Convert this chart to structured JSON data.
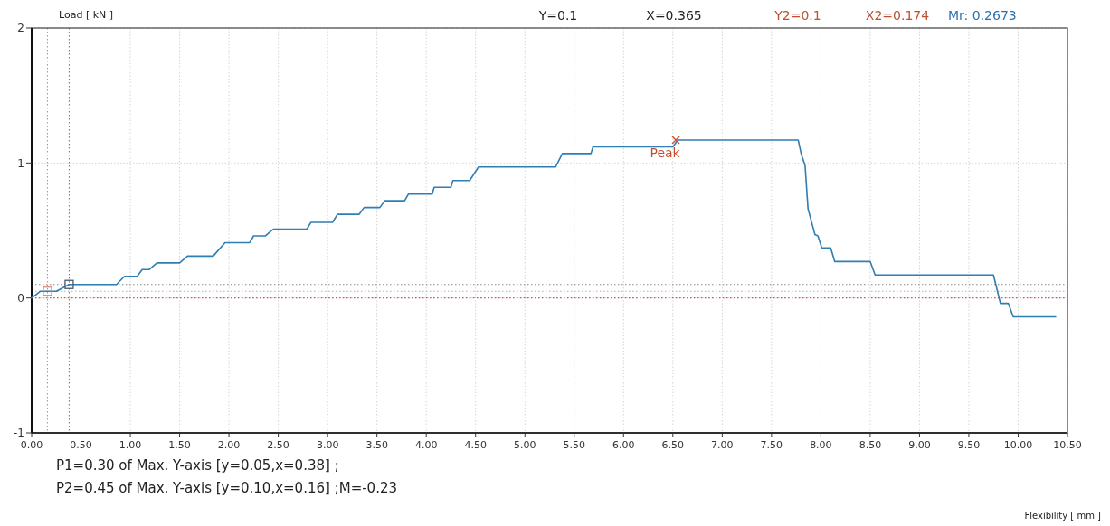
{
  "chart_data": {
    "type": "line",
    "ylabel": "Load [ kN ]",
    "xlim": [
      0,
      10.5
    ],
    "ylim": [
      -1,
      2
    ],
    "xticks": [
      {
        "value": 0,
        "label": "0.00"
      },
      {
        "value": 0.5,
        "label": "0.50"
      },
      {
        "value": 1,
        "label": "1.00"
      },
      {
        "value": 1.5,
        "label": "1.50"
      },
      {
        "value": 2,
        "label": "2.00"
      },
      {
        "value": 2.5,
        "label": "2.50"
      },
      {
        "value": 3,
        "label": "3.00"
      },
      {
        "value": 3.5,
        "label": "3.50"
      },
      {
        "value": 4,
        "label": "4.00"
      },
      {
        "value": 4.5,
        "label": "4.50"
      },
      {
        "value": 5,
        "label": "5.00"
      },
      {
        "value": 5.5,
        "label": "5.50"
      },
      {
        "value": 6,
        "label": "6.00"
      },
      {
        "value": 6.5,
        "label": "6.50"
      },
      {
        "value": 7,
        "label": "7.00"
      },
      {
        "value": 7.5,
        "label": "7.50"
      },
      {
        "value": 8,
        "label": "8.00"
      },
      {
        "value": 8.5,
        "label": "8.50"
      },
      {
        "value": 9,
        "label": "9.00"
      },
      {
        "value": 9.5,
        "label": "9.50"
      },
      {
        "value": 10,
        "label": "10.00"
      },
      {
        "value": 10.5,
        "label": "10.50"
      }
    ],
    "yticks": [
      -1,
      0,
      1,
      2
    ],
    "grid": true,
    "series": [
      {
        "color": "#2e7db3",
        "x": [
          0,
          0.09,
          0.25,
          0.38,
          0.86,
          0.94,
          1.07,
          1.12,
          1.19,
          1.27,
          1.5,
          1.58,
          1.84,
          1.96,
          2.21,
          2.25,
          2.37,
          2.45,
          2.79,
          2.83,
          3.05,
          3.1,
          3.32,
          3.37,
          3.53,
          3.58,
          3.78,
          3.82,
          4.06,
          4.08,
          4.25,
          4.27,
          4.44,
          4.53,
          5.31,
          5.38,
          5.67,
          5.69,
          6.5,
          6.55,
          7.77,
          7.8,
          7.84,
          7.87,
          7.94,
          7.97,
          8.01,
          8.1,
          8.14,
          8.5,
          8.55,
          9.75,
          9.82,
          9.9,
          9.95,
          10.38
        ],
        "values": [
          0,
          0.05,
          0.05,
          0.1,
          0.1,
          0.16,
          0.16,
          0.21,
          0.21,
          0.26,
          0.26,
          0.31,
          0.31,
          0.41,
          0.41,
          0.46,
          0.46,
          0.51,
          0.51,
          0.56,
          0.56,
          0.62,
          0.62,
          0.67,
          0.67,
          0.72,
          0.72,
          0.77,
          0.77,
          0.82,
          0.82,
          0.87,
          0.87,
          0.97,
          0.97,
          1.07,
          1.07,
          1.12,
          1.12,
          1.17,
          1.17,
          1.07,
          0.98,
          0.66,
          0.47,
          0.46,
          0.37,
          0.37,
          0.27,
          0.27,
          0.17,
          0.17,
          -0.04,
          -0.04,
          -0.14,
          -0.14
        ]
      },
      {
        "type": "scatter",
        "marker": "square",
        "color": "#e08a7a",
        "x": [
          0.16
        ],
        "values": [
          0.05
        ]
      },
      {
        "type": "scatter",
        "marker": "square",
        "color": "#4a5a6a",
        "x": [
          0.38
        ],
        "values": [
          0.1
        ]
      },
      {
        "type": "scatter",
        "marker": "cross",
        "color": "#d0533a",
        "x": [
          6.53
        ],
        "values": [
          1.17
        ]
      }
    ],
    "ref_lines": [
      {
        "axis": "y",
        "value": 0,
        "color": "#d9534f",
        "line_style": "dotted"
      },
      {
        "axis": "y",
        "value": 0.1,
        "color": "#8a8a8a",
        "line_style": "dotted"
      },
      {
        "axis": "y",
        "value": 0.05,
        "color": "#b0b0b0",
        "line_style": "dotted"
      },
      {
        "axis": "x",
        "value": 0.16,
        "color": "#a0a0a0",
        "line_style": "dotted"
      },
      {
        "axis": "x",
        "value": 0.38,
        "color": "#808080",
        "line_style": "dotted"
      }
    ],
    "annotations": [
      "Y=0.1",
      "X=0.365",
      "Y2=0.1",
      "X2=0.174",
      "Mr: 0.2673",
      {
        "text": "Peak",
        "x": 6.53,
        "y": 1.17
      },
      "P1=0.30 of Max. Y-axis [y=0.05,x=0.38] ;",
      "P2=0.45 of Max. Y-axis [y=0.10,x=0.16] ;M=-0.23",
      "Flexibility [ mm ]"
    ]
  }
}
